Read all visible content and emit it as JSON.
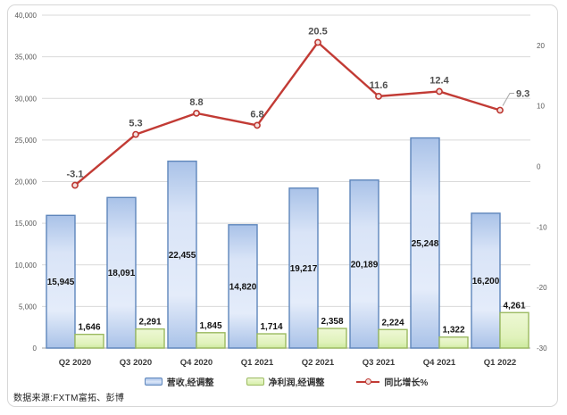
{
  "source_note": "数据来源:FXTM富拓、彭博",
  "chart_data": {
    "type": "combo-bar-line",
    "title": "",
    "categories": [
      "Q2 2020",
      "Q3 2020",
      "Q4 2020",
      "Q1 2021",
      "Q2 2021",
      "Q3 2021",
      "Q4 2021",
      "Q1 2022"
    ],
    "series": [
      {
        "name": "营收,经调整",
        "type": "bar",
        "axis": "left",
        "values": [
          15945,
          18091,
          22455,
          14820,
          19217,
          20189,
          25248,
          16200
        ],
        "labels": [
          "15,945",
          "18,091",
          "22,455",
          "14,820",
          "19,217",
          "20,189",
          "25,248",
          "16,200"
        ]
      },
      {
        "name": "净利润,经调整",
        "type": "bar",
        "axis": "left",
        "values": [
          1646,
          2291,
          1845,
          1714,
          2358,
          2224,
          1322,
          4261
        ],
        "labels": [
          "1,646",
          "2,291",
          "1,845",
          "1,714",
          "2,358",
          "2,224",
          "1,322",
          "4,261"
        ]
      },
      {
        "name": "同比增长%",
        "type": "line",
        "axis": "right",
        "values": [
          -3.1,
          5.3,
          8.8,
          6.8,
          20.5,
          11.6,
          12.4,
          9.3
        ],
        "labels": [
          "-3.1",
          "5.3",
          "8.8",
          "6.8",
          "20.5",
          "11.6",
          "12.4",
          "9.3"
        ]
      }
    ],
    "left_axis": {
      "min": 0,
      "max": 40000,
      "step": 5000,
      "tick_labels": [
        "0",
        "5,000",
        "10,000",
        "15,000",
        "20,000",
        "25,000",
        "30,000",
        "35,000",
        "40,000"
      ]
    },
    "right_axis": {
      "min": -30,
      "max": 25,
      "ticks": [
        20,
        10,
        0,
        -10,
        -20,
        -30
      ],
      "tick_labels": [
        "20",
        "10",
        "0",
        "-10",
        "-20",
        "-30"
      ]
    },
    "grid": true,
    "legend_position": "bottom"
  },
  "colors": {
    "bar_blue_border": "#5e86bb",
    "bar_blue_top": "#a9c2e8",
    "bar_blue_mid": "#d9e4f7",
    "bar_blue_light": "#e4ecfa",
    "bar_green_border": "#9bba60",
    "bar_green_top": "#eef8d5",
    "bar_green_bottom": "#cdea9e",
    "line_red": "#c23b35",
    "marker_stroke": "#bd3731",
    "marker_fill": "#f4e2e0",
    "grid": "#d9d9d9",
    "axis_line": "#b3b3b3",
    "tick_text": "#595959",
    "bar_label_text": "#121212",
    "line_label_text": "#4f4f4f",
    "category_text": "#3a3a3a",
    "leader_line": "#a6a6a6"
  }
}
